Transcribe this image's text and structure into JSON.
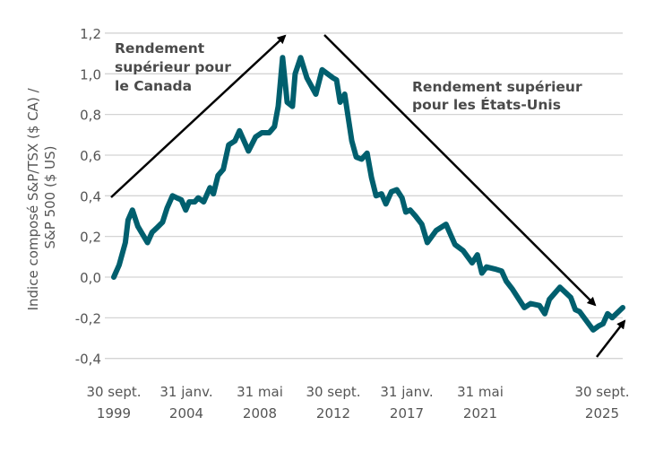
{
  "chart_data": {
    "type": "line",
    "title": "",
    "ylabel_lines": [
      "Indice composé S&P/TSX ($ CA) /",
      "S&P 500 ($ US)"
    ],
    "xlabel": "",
    "ylim": [
      -0.4,
      1.2
    ],
    "yticks": [
      1.2,
      1.0,
      0.8,
      0.6,
      0.4,
      0.2,
      0.0,
      -0.2,
      -0.4
    ],
    "ytick_labels": [
      "1,2",
      "1,0",
      "0,8",
      "0,6",
      "0,4",
      "0,2",
      "0,0",
      "-0,2",
      "-0,4"
    ],
    "grid": "horizontal",
    "xticks": [
      {
        "year": 1999.75,
        "line1": "30 sept.",
        "line2": "1999"
      },
      {
        "year": 2004.08,
        "line1": "31 janv.",
        "line2": "2004"
      },
      {
        "year": 2008.42,
        "line1": "31 mai",
        "line2": "2008"
      },
      {
        "year": 2012.75,
        "line1": "30 sept.",
        "line2": "2012"
      },
      {
        "year": 2017.08,
        "line1": "31 janv.",
        "line2": "2017"
      },
      {
        "year": 2021.42,
        "line1": "31 mai",
        "line2": "2021"
      },
      {
        "year": 2025.75,
        "line1": "30 sept.",
        "line2": "2025"
      }
    ],
    "line_color": "#005f6e",
    "series": [
      {
        "x": [
          1999.75,
          2000.07,
          2000.44,
          2000.6,
          2000.86,
          2001.18,
          2001.76,
          2002.03,
          2002.29,
          2002.66,
          2002.93,
          2003.25,
          2003.51,
          2003.78,
          2004.04,
          2004.25,
          2004.57,
          2004.78,
          2005.1,
          2005.47,
          2005.68,
          2005.95,
          2006.26,
          2006.58,
          2006.95,
          2007.22,
          2007.75,
          2008.17,
          2008.54,
          2008.97,
          2009.28,
          2009.5,
          2009.76,
          2010.03,
          2010.34,
          2010.5,
          2010.82,
          2011.19,
          2011.72,
          2012.09,
          2012.73,
          2012.94,
          2013.15,
          2013.42,
          2013.84,
          2014.1,
          2014.42,
          2014.74,
          2015.0,
          2015.27,
          2015.59,
          2015.85,
          2016.17,
          2016.49,
          2016.8,
          2017.02,
          2017.28,
          2017.6,
          2017.97,
          2018.29,
          2018.82,
          2019.4,
          2019.93,
          2020.41,
          2020.94,
          2021.25,
          2021.47,
          2021.61,
          2021.86,
          2022.07,
          2022.21,
          2022.4,
          2022.76,
          2022.95,
          2023.22,
          2023.38,
          2023.52,
          2023.84,
          2024.17,
          2024.31,
          2024.44,
          2024.85,
          2025.02,
          2025.15,
          2025.29,
          2025.43,
          2025.75
        ],
        "y": [
          0.0,
          0.06,
          0.17,
          0.28,
          0.33,
          0.25,
          0.17,
          0.22,
          0.24,
          0.27,
          0.34,
          0.4,
          0.39,
          0.38,
          0.33,
          0.37,
          0.37,
          0.39,
          0.37,
          0.44,
          0.41,
          0.5,
          0.53,
          0.65,
          0.67,
          0.72,
          0.62,
          0.69,
          0.71,
          0.71,
          0.74,
          0.84,
          1.08,
          0.86,
          0.84,
          1.0,
          1.08,
          0.98,
          0.9,
          1.02,
          0.98,
          0.97,
          0.86,
          0.9,
          0.67,
          0.59,
          0.58,
          0.61,
          0.49,
          0.4,
          0.41,
          0.36,
          0.42,
          0.43,
          0.39,
          0.32,
          0.33,
          0.3,
          0.26,
          0.17,
          0.23,
          0.26,
          0.16,
          0.13,
          0.07,
          0.11,
          0.02,
          0.05,
          0.04,
          0.03,
          -0.02,
          -0.06,
          -0.15,
          -0.13,
          -0.14,
          -0.18,
          -0.11,
          -0.05,
          -0.1,
          -0.16,
          -0.17,
          -0.26,
          -0.24,
          -0.23,
          -0.18,
          -0.2,
          -0.15
        ]
      }
    ],
    "annotations": [
      {
        "lines": [
          "Rendement",
          "supérieur pour",
          "le Canada"
        ]
      },
      {
        "lines": [
          "Rendement supérieur",
          "pour les États-Unis"
        ]
      }
    ]
  }
}
